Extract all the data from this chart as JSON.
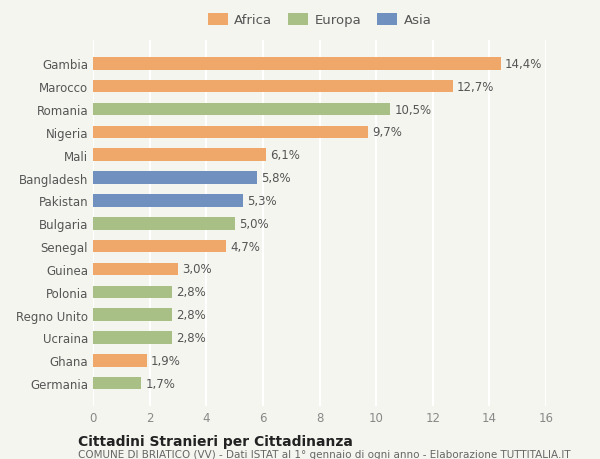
{
  "categories": [
    "Germania",
    "Ghana",
    "Ucraina",
    "Regno Unito",
    "Polonia",
    "Guinea",
    "Senegal",
    "Bulgaria",
    "Pakistan",
    "Bangladesh",
    "Mali",
    "Nigeria",
    "Romania",
    "Marocco",
    "Gambia"
  ],
  "values": [
    1.7,
    1.9,
    2.8,
    2.8,
    2.8,
    3.0,
    4.7,
    5.0,
    5.3,
    5.8,
    6.1,
    9.7,
    10.5,
    12.7,
    14.4
  ],
  "labels": [
    "1,7%",
    "1,9%",
    "2,8%",
    "2,8%",
    "2,8%",
    "3,0%",
    "4,7%",
    "5,0%",
    "5,3%",
    "5,8%",
    "6,1%",
    "9,7%",
    "10,5%",
    "12,7%",
    "14,4%"
  ],
  "colors": [
    "#a8c085",
    "#f0a86a",
    "#a8c085",
    "#a8c085",
    "#a8c085",
    "#f0a86a",
    "#f0a86a",
    "#a8c085",
    "#7090c0",
    "#7090c0",
    "#f0a86a",
    "#f0a86a",
    "#a8c085",
    "#f0a86a",
    "#f0a86a"
  ],
  "legend": [
    {
      "label": "Africa",
      "color": "#f0a86a"
    },
    {
      "label": "Europa",
      "color": "#a8c085"
    },
    {
      "label": "Asia",
      "color": "#7090c0"
    }
  ],
  "xlim": [
    0,
    16
  ],
  "xticks": [
    0,
    2,
    4,
    6,
    8,
    10,
    12,
    14,
    16
  ],
  "title": "Cittadini Stranieri per Cittadinanza",
  "subtitle": "COMUNE DI BRIATICO (VV) - Dati ISTAT al 1° gennaio di ogni anno - Elaborazione TUTTITALIA.IT",
  "bg_color": "#f5f5f0",
  "bar_height": 0.55,
  "grid_color": "#ffffff",
  "label_fontsize": 8.5,
  "tick_fontsize": 8.5,
  "legend_fontsize": 9.5,
  "title_fontsize": 10,
  "subtitle_fontsize": 7.5
}
